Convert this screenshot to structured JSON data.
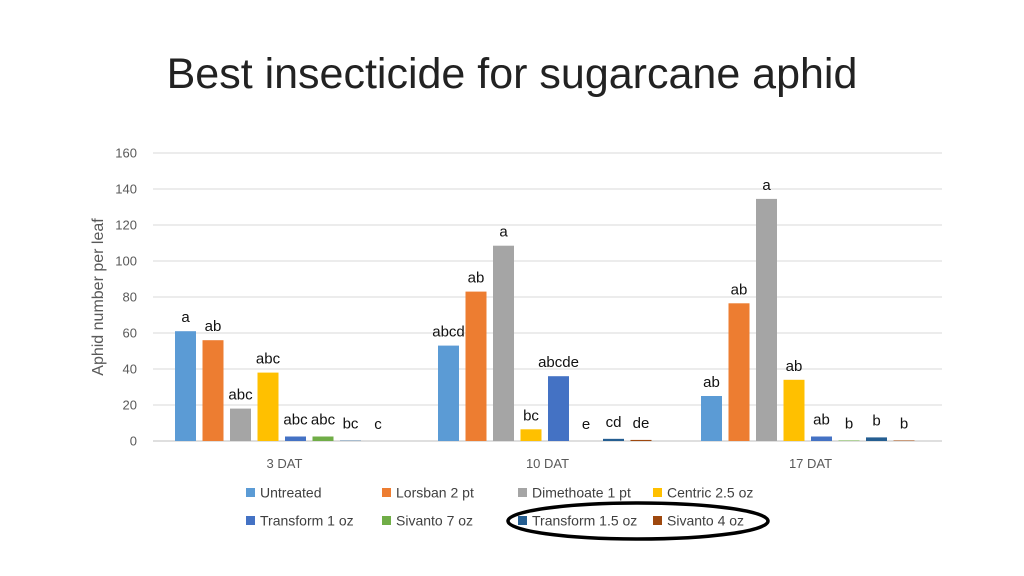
{
  "slide": {
    "title": "Best insecticide for sugarcane aphid"
  },
  "chart_data": {
    "type": "bar",
    "title": "",
    "xlabel": "",
    "ylabel": "Aphid number per leaf",
    "ylim": [
      0,
      160
    ],
    "yticks": [
      0,
      20,
      40,
      60,
      80,
      100,
      120,
      140,
      160
    ],
    "grid": true,
    "legend_position": "bottom",
    "categories": [
      "3 DAT",
      "10 DAT",
      "17 DAT"
    ],
    "series": [
      {
        "name": "Untreated",
        "color": "#5B9BD5",
        "values": [
          61,
          53,
          25
        ],
        "labels": [
          "a",
          "abcd",
          "ab"
        ]
      },
      {
        "name": "Lorsban 2 pt",
        "color": "#ED7D31",
        "values": [
          56,
          83,
          76.5
        ],
        "labels": [
          "ab",
          "ab",
          "ab"
        ]
      },
      {
        "name": "Dimethoate 1 pt",
        "color": "#A5A5A5",
        "values": [
          18,
          108.5,
          134.5
        ],
        "labels": [
          "abc",
          "a",
          "a"
        ]
      },
      {
        "name": "Centric 2.5 oz",
        "color": "#FFC000",
        "values": [
          38,
          6.5,
          34
        ],
        "labels": [
          "abc",
          "bc",
          "ab"
        ]
      },
      {
        "name": "Transform 1 oz",
        "color": "#4472C4",
        "values": [
          2.5,
          36,
          2.5
        ],
        "labels": [
          "abc",
          "abcde",
          "ab"
        ]
      },
      {
        "name": "Sivanto 7 oz",
        "color": "#70AD47",
        "values": [
          2.5,
          0,
          0.3
        ],
        "labels": [
          "abc",
          "e",
          "b"
        ]
      },
      {
        "name": "Transform 1.5 oz",
        "color": "#255E91",
        "values": [
          0.2,
          1.2,
          2
        ],
        "labels": [
          "bc",
          "cd",
          "b"
        ]
      },
      {
        "name": "Sivanto 4 oz",
        "color": "#9E480E",
        "values": [
          0,
          0.6,
          0.3
        ],
        "labels": [
          "c",
          "de",
          "b"
        ]
      }
    ],
    "highlighted_legend_entry": "Transform 1.5 oz"
  }
}
